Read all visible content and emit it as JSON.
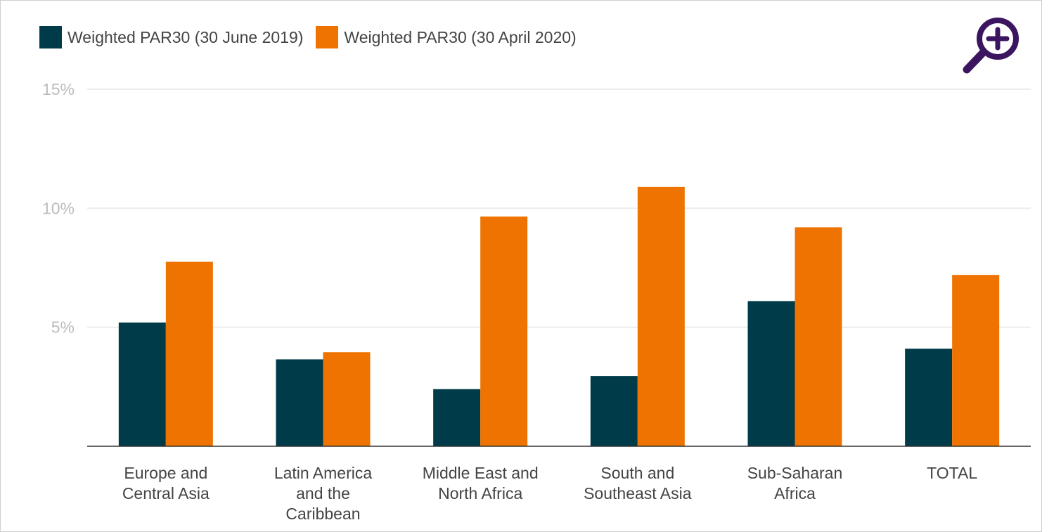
{
  "legend": {
    "series1": "Weighted PAR30 (30 June 2019)",
    "series2": "Weighted PAR30 (30 April 2020)"
  },
  "colors": {
    "series1": "#003b49",
    "series2": "#ef7300",
    "zoom": "#3b1560"
  },
  "zoom_icon": "zoom-in-magnifier-icon",
  "chart_data": {
    "type": "bar",
    "categories": [
      [
        "Europe and",
        "Central Asia"
      ],
      [
        "Latin America",
        "and the",
        "Caribbean"
      ],
      [
        "Middle East and",
        "North Africa"
      ],
      [
        "South and",
        "Southeast Asia"
      ],
      [
        "Sub-Saharan",
        "Africa"
      ],
      [
        "TOTAL"
      ]
    ],
    "series": [
      {
        "name": "Weighted PAR30 (30 June 2019)",
        "values": [
          5.2,
          3.65,
          2.4,
          2.95,
          6.1,
          4.1
        ]
      },
      {
        "name": "Weighted PAR30 (30 April 2020)",
        "values": [
          7.75,
          3.95,
          9.65,
          10.9,
          9.2,
          7.2
        ]
      }
    ],
    "yticks": [
      "5%",
      "10%",
      "15%"
    ],
    "ytick_values": [
      5,
      10,
      15
    ],
    "ylim": [
      0,
      15
    ],
    "grid": true,
    "legend_position": "top-left"
  }
}
